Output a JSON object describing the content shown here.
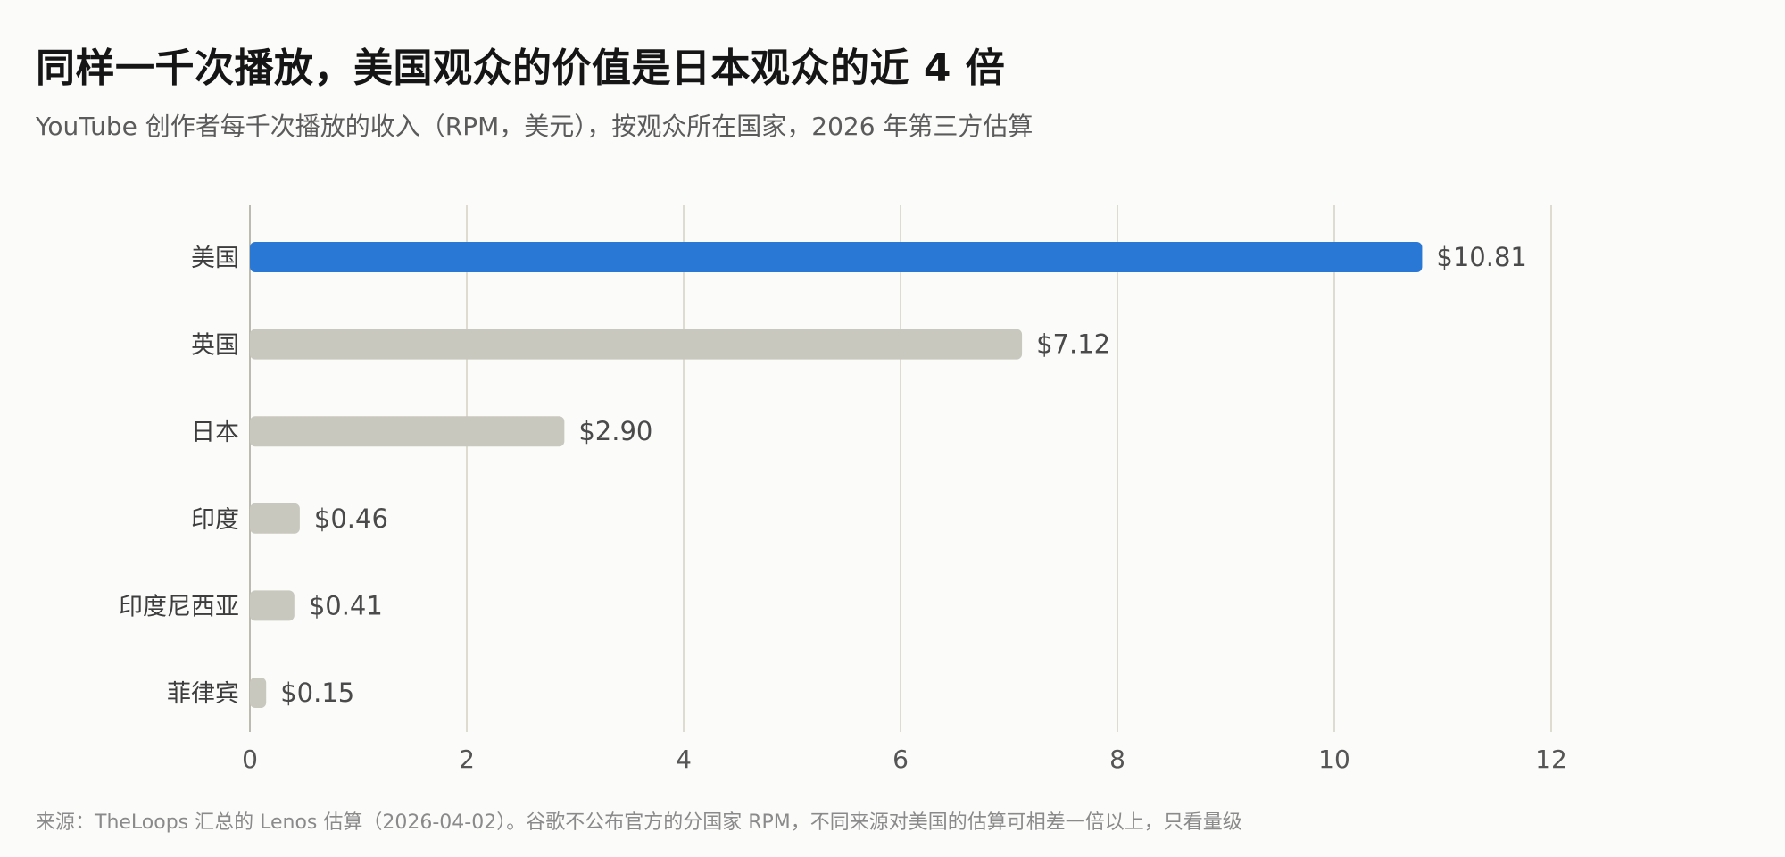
{
  "title": "同样一千次播放，美国观众的价值是日本观众的近 4 倍",
  "subtitle": "YouTube 创作者每千次播放的收入（RPM，美元），按观众所在国家，2026 年第三方估算",
  "footer": "来源：TheLoops 汇总的 Lenos 估算（2026-04-02）。谷歌不公布官方的分国家 RPM，不同来源对美国的估算可相差一倍以上，只看量级",
  "colors": {
    "highlight": "#2a78d6",
    "bar": "#c9c8be",
    "grid": "#dedbd0",
    "axis": "#bdbab0",
    "label": "#3d3d3d",
    "value": "#4a4a4a",
    "tick": "#555555"
  },
  "chart_data": {
    "type": "bar",
    "orientation": "horizontal",
    "categories": [
      "美国",
      "英国",
      "日本",
      "印度",
      "印度尼西亚",
      "菲律宾"
    ],
    "values": [
      10.81,
      7.12,
      2.9,
      0.46,
      0.41,
      0.15
    ],
    "value_labels": [
      "$10.81",
      "$7.12",
      "$2.90",
      "$0.46",
      "$0.41",
      "$0.15"
    ],
    "highlight_index": 0,
    "xlim": [
      0,
      12
    ],
    "xticks": [
      0,
      2,
      4,
      6,
      8,
      10,
      12
    ],
    "grid": true
  }
}
